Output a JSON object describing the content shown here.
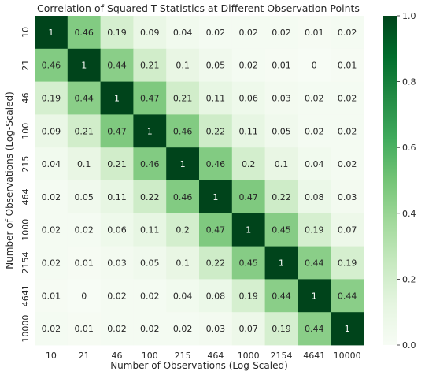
{
  "chart_data": {
    "type": "heatmap",
    "title": "Correlation of Squared T-Statistics at Different Observation Points",
    "xlabel": "Number of Observations (Log-Scaled)",
    "ylabel": "Number of Observations (Log-Scaled)",
    "x_categories": [
      "10",
      "21",
      "46",
      "100",
      "215",
      "464",
      "1000",
      "2154",
      "4641",
      "10000"
    ],
    "y_categories": [
      "10",
      "21",
      "46",
      "100",
      "215",
      "464",
      "1000",
      "2154",
      "4641",
      "10000"
    ],
    "values": [
      [
        1,
        0.46,
        0.19,
        0.09,
        0.04,
        0.02,
        0.02,
        0.02,
        0.01,
        0.02
      ],
      [
        0.46,
        1,
        0.44,
        0.21,
        0.1,
        0.05,
        0.02,
        0.01,
        0,
        0.01
      ],
      [
        0.19,
        0.44,
        1,
        0.47,
        0.21,
        0.11,
        0.06,
        0.03,
        0.02,
        0.02
      ],
      [
        0.09,
        0.21,
        0.47,
        1,
        0.46,
        0.22,
        0.11,
        0.05,
        0.02,
        0.02
      ],
      [
        0.04,
        0.1,
        0.21,
        0.46,
        1,
        0.46,
        0.2,
        0.1,
        0.04,
        0.02
      ],
      [
        0.02,
        0.05,
        0.11,
        0.22,
        0.46,
        1,
        0.47,
        0.22,
        0.08,
        0.03
      ],
      [
        0.02,
        0.02,
        0.06,
        0.11,
        0.2,
        0.47,
        1,
        0.45,
        0.19,
        0.07
      ],
      [
        0.02,
        0.01,
        0.03,
        0.05,
        0.1,
        0.22,
        0.45,
        1,
        0.44,
        0.19
      ],
      [
        0.01,
        0,
        0.02,
        0.02,
        0.04,
        0.08,
        0.19,
        0.44,
        1,
        0.44
      ],
      [
        0.02,
        0.01,
        0.02,
        0.02,
        0.02,
        0.03,
        0.07,
        0.19,
        0.44,
        1
      ]
    ],
    "colorbar": {
      "range": [
        0,
        1
      ],
      "ticks": [
        "0.0",
        "0.2",
        "0.4",
        "0.6",
        "0.8",
        "1.0"
      ],
      "colormap": "Greens",
      "low_color": "#f7fcf5",
      "high_color": "#00441b"
    },
    "annotations": true,
    "grid": false
  }
}
